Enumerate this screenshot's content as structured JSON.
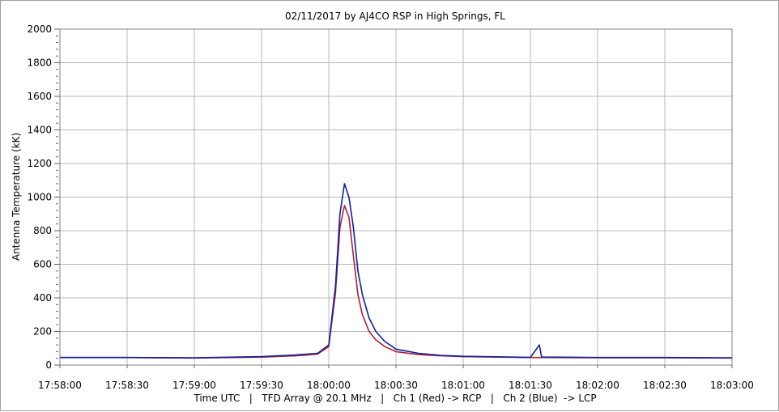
{
  "chart_data": {
    "type": "line",
    "title": "02/11/2017  by  AJ4CO RSP  in  High Springs, FL",
    "xlabel": "Time UTC   |   TFD Array @ 20.1 MHz   |   Ch 1 (Red) -> RCP   |   Ch 2 (Blue)  -> LCP",
    "ylabel": "Antenna Temperature (kK)",
    "x_ticks": [
      "17:58:00",
      "17:58:30",
      "17:59:00",
      "17:59:30",
      "18:00:00",
      "18:00:30",
      "18:01:00",
      "18:01:30",
      "18:02:00",
      "18:02:30",
      "18:03:00"
    ],
    "y_ticks": [
      0,
      200,
      400,
      600,
      800,
      1000,
      1200,
      1400,
      1600,
      1800,
      2000
    ],
    "xlim": [
      "17:58:00",
      "18:03:00"
    ],
    "ylim": [
      0,
      2000
    ],
    "grid": true,
    "series": [
      {
        "name": "Ch 1 (Red) -> RCP",
        "color": "#b02030",
        "x": [
          "17:58:00",
          "17:58:30",
          "17:59:00",
          "17:59:30",
          "17:59:45",
          "17:59:55",
          "18:00:00",
          "18:00:03",
          "18:00:05",
          "18:00:07",
          "18:00:09",
          "18:00:11",
          "18:00:13",
          "18:00:15",
          "18:00:18",
          "18:00:21",
          "18:00:25",
          "18:00:30",
          "18:00:40",
          "18:00:50",
          "18:01:00",
          "18:01:30",
          "18:01:35",
          "18:02:00",
          "18:02:30",
          "18:03:00"
        ],
        "y": [
          45,
          45,
          42,
          47,
          55,
          65,
          110,
          430,
          820,
          950,
          880,
          650,
          420,
          300,
          200,
          150,
          110,
          80,
          62,
          55,
          50,
          45,
          45,
          44,
          44,
          42
        ]
      },
      {
        "name": "Ch 2 (Blue)  -> LCP",
        "color": "#1020a0",
        "x": [
          "17:58:00",
          "17:58:30",
          "17:59:00",
          "17:59:30",
          "17:59:45",
          "17:59:55",
          "18:00:00",
          "18:00:03",
          "18:00:05",
          "18:00:07",
          "18:00:09",
          "18:00:11",
          "18:00:13",
          "18:00:15",
          "18:00:18",
          "18:00:21",
          "18:00:25",
          "18:00:30",
          "18:00:40",
          "18:00:50",
          "18:01:00",
          "18:01:30",
          "18:01:34",
          "18:01:35",
          "18:02:00",
          "18:02:30",
          "18:03:00"
        ],
        "y": [
          45,
          45,
          43,
          50,
          60,
          70,
          120,
          470,
          900,
          1080,
          1000,
          820,
          560,
          420,
          280,
          200,
          140,
          95,
          70,
          58,
          52,
          46,
          120,
          48,
          45,
          45,
          43
        ]
      }
    ]
  }
}
